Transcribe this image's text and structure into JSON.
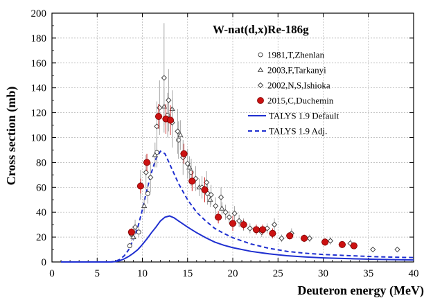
{
  "chart_data": {
    "type": "scatter",
    "title": "W-nat(d,x)Re-186g",
    "xlabel": "Deuteron energy (MeV)",
    "ylabel": "Cross section (mb)",
    "xlim": [
      0,
      40
    ],
    "ylim": [
      0,
      200
    ],
    "x_ticks": [
      "0",
      "5",
      "10",
      "15",
      "20",
      "25",
      "30",
      "35",
      "40"
    ],
    "y_ticks": [
      "0",
      "20",
      "40",
      "60",
      "80",
      "100",
      "120",
      "140",
      "160",
      "180",
      "200"
    ],
    "grid": true,
    "legend_position": "right",
    "colors": {
      "talys": "#1f2fd0",
      "duchemin": "#cc1111",
      "marker_edge": "#444444",
      "grid": "#b0b0b0"
    },
    "series": [
      {
        "name": "1981,T,Zhenlan",
        "marker": "open-circle",
        "points": [
          {
            "x": 8.6,
            "y": 13,
            "err": 2
          },
          {
            "x": 9.6,
            "y": 24,
            "err": 4
          },
          {
            "x": 10.6,
            "y": 55,
            "err": 8
          },
          {
            "x": 11.6,
            "y": 88,
            "err": 12
          },
          {
            "x": 12.8,
            "y": 118,
            "err": 18
          },
          {
            "x": 14.0,
            "y": 98,
            "err": 15
          },
          {
            "x": 15.4,
            "y": 72,
            "err": 11
          },
          {
            "x": 17.2,
            "y": 55,
            "err": 9
          }
        ]
      },
      {
        "name": "2003,F,Tarkanyi",
        "marker": "open-triangle",
        "points": [
          {
            "x": 9.0,
            "y": 20,
            "err": 3
          },
          {
            "x": 10.2,
            "y": 45,
            "err": 6
          },
          {
            "x": 11.4,
            "y": 86,
            "err": 10
          },
          {
            "x": 12.4,
            "y": 125,
            "err": 15
          },
          {
            "x": 13.3,
            "y": 123,
            "err": 15
          },
          {
            "x": 14.2,
            "y": 102,
            "err": 12
          },
          {
            "x": 15.2,
            "y": 76,
            "err": 9
          },
          {
            "x": 16.3,
            "y": 60,
            "err": 7
          },
          {
            "x": 17.5,
            "y": 50,
            "err": 6
          },
          {
            "x": 18.8,
            "y": 43,
            "err": 5
          }
        ]
      },
      {
        "name": "2002,N,S,Ishioka",
        "marker": "open-diamond",
        "points": [
          {
            "x": 8.8,
            "y": 22,
            "err": 5
          },
          {
            "x": 9.2,
            "y": 28,
            "err": 6
          },
          {
            "x": 9.8,
            "y": 62,
            "err": 12
          },
          {
            "x": 10.4,
            "y": 72,
            "err": 14
          },
          {
            "x": 10.9,
            "y": 68,
            "err": 12
          },
          {
            "x": 11.6,
            "y": 109,
            "err": 20
          },
          {
            "x": 11.9,
            "y": 124,
            "err": 22
          },
          {
            "x": 12.4,
            "y": 148,
            "err": 44
          },
          {
            "x": 12.9,
            "y": 130,
            "err": 25
          },
          {
            "x": 13.3,
            "y": 112,
            "err": 20
          },
          {
            "x": 13.9,
            "y": 105,
            "err": 18
          },
          {
            "x": 14.5,
            "y": 84,
            "err": 14
          },
          {
            "x": 15.0,
            "y": 79,
            "err": 12
          },
          {
            "x": 15.9,
            "y": 67,
            "err": 10
          },
          {
            "x": 16.6,
            "y": 60,
            "err": 9
          },
          {
            "x": 17.1,
            "y": 64,
            "err": 9
          },
          {
            "x": 17.6,
            "y": 54,
            "err": 8
          },
          {
            "x": 18.1,
            "y": 45,
            "err": 7
          },
          {
            "x": 18.7,
            "y": 52,
            "err": 8
          },
          {
            "x": 19.2,
            "y": 40,
            "err": 6
          },
          {
            "x": 19.6,
            "y": 36,
            "err": 5
          },
          {
            "x": 20.2,
            "y": 39,
            "err": 6
          },
          {
            "x": 20.7,
            "y": 33,
            "err": 5
          },
          {
            "x": 21.2,
            "y": 30,
            "err": 5
          },
          {
            "x": 21.9,
            "y": 27,
            "err": 4
          },
          {
            "x": 22.6,
            "y": 26,
            "err": 4
          },
          {
            "x": 23.2,
            "y": 24,
            "err": 4
          },
          {
            "x": 23.8,
            "y": 27,
            "err": 4
          },
          {
            "x": 24.6,
            "y": 30,
            "err": 5
          },
          {
            "x": 25.4,
            "y": 19,
            "err": 3
          },
          {
            "x": 26.5,
            "y": 23,
            "err": 4
          },
          {
            "x": 28.5,
            "y": 19,
            "err": 3
          },
          {
            "x": 30.8,
            "y": 17,
            "err": 3
          },
          {
            "x": 33.0,
            "y": 15,
            "err": 3
          },
          {
            "x": 35.5,
            "y": 10,
            "err": 2
          },
          {
            "x": 38.2,
            "y": 10,
            "err": 2
          }
        ]
      },
      {
        "name": "2015,C,Duchemin",
        "marker": "filled-circle",
        "points": [
          {
            "x": 8.8,
            "y": 24,
            "xerr": 0.4,
            "err": 3
          },
          {
            "x": 9.8,
            "y": 61,
            "xerr": 0.4,
            "err": 6
          },
          {
            "x": 10.5,
            "y": 80,
            "xerr": 0.4,
            "err": 7
          },
          {
            "x": 11.8,
            "y": 117,
            "xerr": 0.4,
            "err": 10
          },
          {
            "x": 12.6,
            "y": 115,
            "xerr": 0.4,
            "err": 12
          },
          {
            "x": 13.1,
            "y": 114,
            "xerr": 0.4,
            "err": 12
          },
          {
            "x": 14.6,
            "y": 87,
            "xerr": 0.4,
            "err": 8
          },
          {
            "x": 15.5,
            "y": 65,
            "xerr": 0.4,
            "err": 8
          },
          {
            "x": 16.9,
            "y": 58,
            "xerr": 0.4,
            "err": 10
          },
          {
            "x": 18.4,
            "y": 36,
            "xerr": 0.4,
            "err": 5
          },
          {
            "x": 20.0,
            "y": 31,
            "xerr": 0.4,
            "err": 6
          },
          {
            "x": 21.2,
            "y": 30,
            "xerr": 0.4,
            "err": 4
          },
          {
            "x": 22.6,
            "y": 26,
            "xerr": 0.4,
            "err": 4
          },
          {
            "x": 23.3,
            "y": 26,
            "xerr": 0.4,
            "err": 4
          },
          {
            "x": 24.4,
            "y": 23,
            "xerr": 0.4,
            "err": 4
          },
          {
            "x": 26.3,
            "y": 21,
            "xerr": 0.4,
            "err": 3
          },
          {
            "x": 27.9,
            "y": 19,
            "xerr": 0.4,
            "err": 3
          },
          {
            "x": 30.2,
            "y": 16,
            "xerr": 0.4,
            "err": 3
          },
          {
            "x": 32.1,
            "y": 14,
            "xerr": 0.4,
            "err": 2
          },
          {
            "x": 33.4,
            "y": 13,
            "xerr": 0.4,
            "err": 2
          }
        ]
      },
      {
        "name": "TALYS 1.9 Default",
        "line": "solid",
        "x": [
          1,
          6.5,
          7,
          7.5,
          8,
          8.5,
          9,
          9.5,
          10,
          10.5,
          11,
          11.5,
          12,
          12.5,
          13,
          13.5,
          14,
          15,
          16,
          17,
          18,
          19,
          20,
          22,
          24,
          26,
          28,
          30,
          33,
          36,
          40
        ],
        "y": [
          0,
          0,
          0.3,
          1,
          2.5,
          4.5,
          7,
          10,
          14,
          18.5,
          23.5,
          28,
          33,
          36,
          37,
          35.5,
          33,
          28,
          23.5,
          19.5,
          16,
          13.5,
          11.5,
          8.5,
          6.5,
          5,
          4,
          3.3,
          2.6,
          2.1,
          1.6
        ]
      },
      {
        "name": "TALYS 1.9 Adj.",
        "line": "dashed",
        "x": [
          1,
          6.5,
          7,
          7.5,
          8,
          8.5,
          9,
          9.5,
          10,
          10.5,
          11,
          11.5,
          12,
          12.5,
          13,
          13.5,
          14,
          15,
          16,
          17,
          18,
          19,
          20,
          22,
          24,
          26,
          28,
          30,
          33,
          36,
          40
        ],
        "y": [
          0,
          0,
          0.5,
          2,
          5,
          10,
          18,
          28,
          42,
          58,
          72,
          83,
          89,
          87,
          79,
          71,
          63,
          50,
          40,
          33,
          27,
          23,
          19.5,
          14.5,
          11,
          8.5,
          7,
          6,
          5,
          4.2,
          3.5
        ]
      }
    ]
  }
}
